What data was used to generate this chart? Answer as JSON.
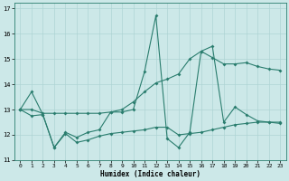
{
  "xlabel": "Humidex (Indice chaleur)",
  "xlim": [
    -0.5,
    23.5
  ],
  "ylim": [
    11,
    17.2
  ],
  "yticks": [
    11,
    12,
    13,
    14,
    15,
    16,
    17
  ],
  "xticks": [
    0,
    1,
    2,
    3,
    4,
    5,
    6,
    7,
    8,
    9,
    10,
    11,
    12,
    13,
    14,
    15,
    16,
    17,
    18,
    19,
    20,
    21,
    22,
    23
  ],
  "line_color": "#2a7d6e",
  "bg_color": "#cce8e8",
  "grid_color": "#aed4d4",
  "line1_x": [
    0,
    1,
    2,
    3,
    4,
    5,
    6,
    7,
    8,
    9,
    10,
    11,
    12,
    13,
    14,
    15,
    16,
    17,
    18,
    19,
    20,
    21,
    22,
    23
  ],
  "line1_y": [
    13.0,
    13.7,
    12.8,
    11.5,
    12.1,
    11.9,
    12.1,
    12.2,
    12.9,
    12.9,
    13.0,
    14.5,
    16.7,
    11.85,
    11.5,
    12.1,
    15.3,
    15.5,
    12.5,
    13.1,
    12.8,
    12.55,
    12.5,
    12.45
  ],
  "line2_x": [
    0,
    1,
    2,
    3,
    4,
    5,
    6,
    7,
    8,
    9,
    10,
    11,
    12,
    13,
    14,
    15,
    16,
    17,
    18,
    19,
    20,
    21,
    22,
    23
  ],
  "line2_y": [
    13.0,
    12.75,
    12.8,
    11.5,
    12.05,
    11.7,
    11.8,
    11.95,
    12.05,
    12.1,
    12.15,
    12.2,
    12.3,
    12.3,
    12.0,
    12.05,
    12.1,
    12.2,
    12.3,
    12.4,
    12.45,
    12.5,
    12.5,
    12.5
  ],
  "line3_x": [
    0,
    1,
    2,
    3,
    4,
    5,
    6,
    7,
    8,
    9,
    10,
    11,
    12,
    13,
    14,
    15,
    16,
    17,
    18,
    19,
    20,
    21,
    22,
    23
  ],
  "line3_y": [
    13.0,
    13.0,
    12.85,
    12.85,
    12.85,
    12.85,
    12.85,
    12.85,
    12.9,
    13.0,
    13.3,
    13.7,
    14.05,
    14.2,
    14.4,
    15.0,
    15.3,
    15.05,
    14.8,
    14.8,
    14.85,
    14.7,
    14.6,
    14.55
  ]
}
